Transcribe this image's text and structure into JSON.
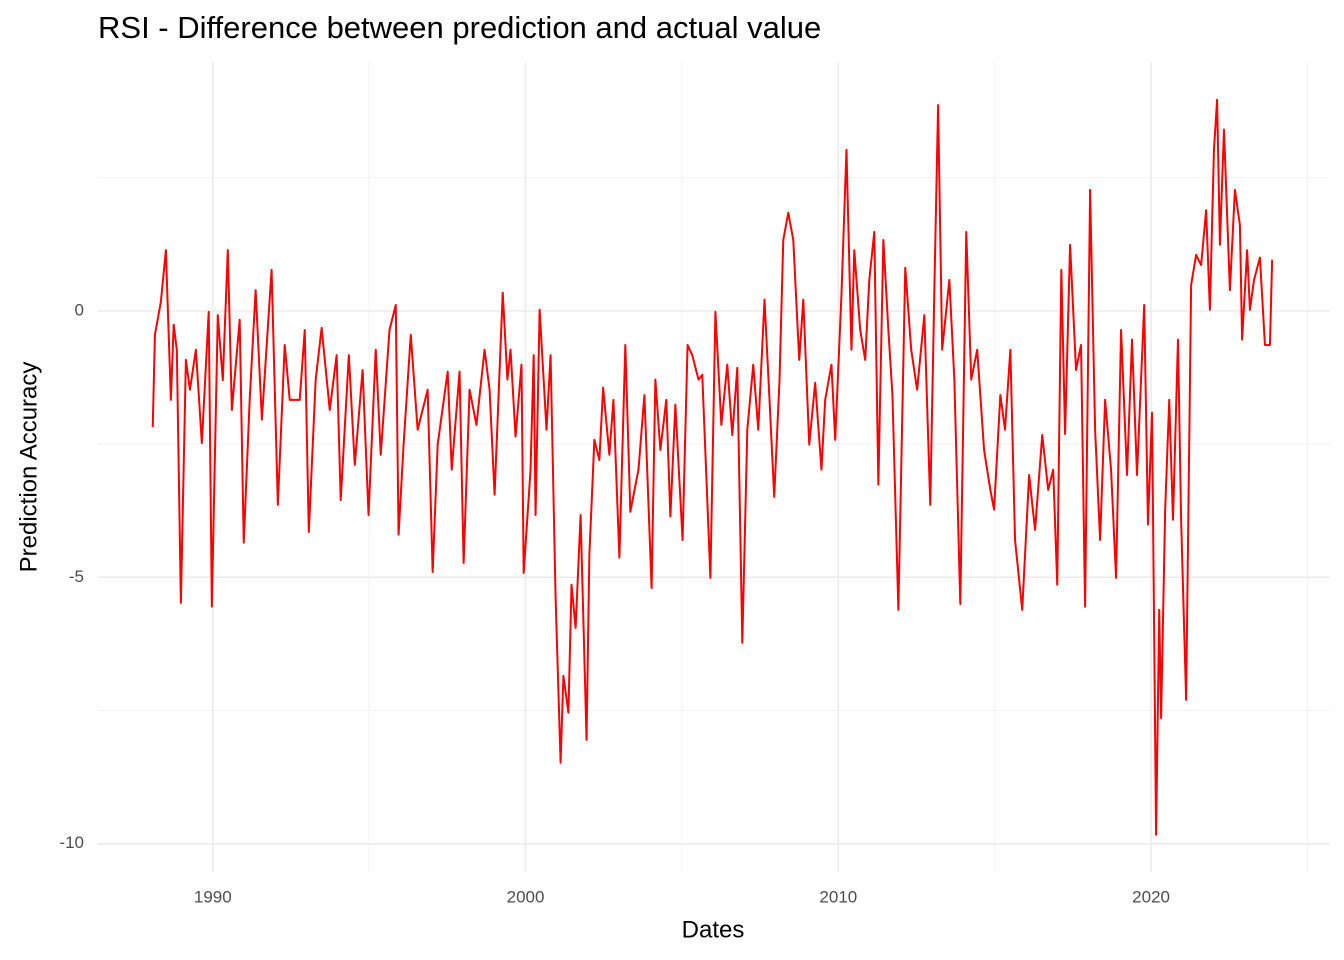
{
  "chart_data": {
    "type": "line",
    "title": "RSI -  Difference between prediction and actual value",
    "x_label": "Dates",
    "y_label": "Prediction Accuracy",
    "xlim": [
      1986.33,
      2025.72
    ],
    "ylim": [
      -10.53,
      4.67
    ],
    "xticks": [
      1990,
      2000,
      2010,
      2020
    ],
    "yticks": [
      -10,
      -5,
      0
    ],
    "grid": true,
    "series": [
      {
        "name": "RSI",
        "color": "#ff0000",
        "x": [
          1988.08,
          1988.15,
          1988.34,
          1988.5,
          1988.66,
          1988.75,
          1988.85,
          1988.98,
          1989.14,
          1989.27,
          1989.46,
          1989.65,
          1989.87,
          1989.97,
          1990.16,
          1990.32,
          1990.48,
          1990.61,
          1990.86,
          1990.99,
          1991.18,
          1991.37,
          1991.57,
          1991.88,
          1992.08,
          1992.3,
          1992.46,
          1992.78,
          1992.94,
          1993.07,
          1993.29,
          1993.48,
          1993.74,
          1993.96,
          1994.09,
          1994.35,
          1994.54,
          1994.79,
          1994.98,
          1995.21,
          1995.37,
          1995.65,
          1995.85,
          1995.94,
          1996.1,
          1996.33,
          1996.55,
          1996.87,
          1997.03,
          1997.19,
          1997.51,
          1997.64,
          1997.89,
          1998.02,
          1998.21,
          1998.43,
          1998.69,
          1998.85,
          1999.01,
          1999.27,
          1999.42,
          1999.52,
          1999.68,
          1999.87,
          1999.94,
          2000.16,
          2000.26,
          2000.32,
          2000.45,
          2000.67,
          2000.8,
          2000.96,
          2001.12,
          2001.21,
          2001.37,
          2001.47,
          2001.6,
          2001.76,
          2001.95,
          2002.04,
          2002.2,
          2002.36,
          2002.48,
          2002.68,
          2002.81,
          2003.0,
          2003.19,
          2003.35,
          2003.61,
          2003.8,
          2004.03,
          2004.15,
          2004.31,
          2004.5,
          2004.63,
          2004.79,
          2005.02,
          2005.18,
          2005.33,
          2005.53,
          2005.65,
          2005.91,
          2006.07,
          2006.26,
          2006.45,
          2006.61,
          2006.77,
          2006.93,
          2007.09,
          2007.28,
          2007.44,
          2007.64,
          2007.8,
          2007.95,
          2008.12,
          2008.24,
          2008.4,
          2008.56,
          2008.75,
          2008.88,
          2009.07,
          2009.26,
          2009.46,
          2009.58,
          2009.78,
          2009.9,
          2010.1,
          2010.26,
          2010.42,
          2010.51,
          2010.7,
          2010.86,
          2010.99,
          2011.15,
          2011.28,
          2011.44,
          2011.6,
          2011.73,
          2011.92,
          2012.14,
          2012.33,
          2012.52,
          2012.75,
          2012.94,
          2013.07,
          2013.19,
          2013.32,
          2013.55,
          2013.71,
          2013.9,
          2014.09,
          2014.25,
          2014.44,
          2014.66,
          2014.86,
          2014.98,
          2015.18,
          2015.33,
          2015.5,
          2015.65,
          2015.88,
          2016.1,
          2016.29,
          2016.52,
          2016.71,
          2016.87,
          2017.0,
          2017.13,
          2017.25,
          2017.41,
          2017.6,
          2017.76,
          2017.89,
          2018.05,
          2018.21,
          2018.37,
          2018.53,
          2018.72,
          2018.88,
          2019.04,
          2019.23,
          2019.39,
          2019.55,
          2019.78,
          2019.9,
          2020.03,
          2020.16,
          2020.26,
          2020.32,
          2020.45,
          2020.58,
          2020.7,
          2020.86,
          2020.96,
          2021.12,
          2021.28,
          2021.44,
          2021.6,
          2021.76,
          2021.88,
          2022.01,
          2022.11,
          2022.2,
          2022.33,
          2022.52,
          2022.68,
          2022.84,
          2022.91,
          2023.07,
          2023.16,
          2023.29,
          2023.48,
          2023.64,
          2023.8,
          2023.87
        ],
        "values": [
          -2.18,
          -0.45,
          0.17,
          1.14,
          -1.67,
          -0.26,
          -0.73,
          -5.48,
          -0.92,
          -1.48,
          -0.73,
          -2.48,
          -0.02,
          -5.55,
          -0.08,
          -1.3,
          1.14,
          -1.86,
          -0.17,
          -4.35,
          -1.67,
          0.39,
          -2.04,
          0.77,
          -3.64,
          -0.64,
          -1.67,
          -1.67,
          -0.36,
          -4.15,
          -1.29,
          -0.32,
          -1.86,
          -0.83,
          -3.55,
          -0.83,
          -2.89,
          -1.11,
          -3.83,
          -0.73,
          -2.7,
          -0.36,
          0.11,
          -4.2,
          -2.51,
          -0.45,
          -2.23,
          -1.48,
          -4.9,
          -2.51,
          -1.14,
          -2.98,
          -1.14,
          -4.73,
          -1.48,
          -2.14,
          -0.73,
          -1.48,
          -3.45,
          0.34,
          -1.29,
          -0.73,
          -2.36,
          -1.01,
          -4.92,
          -2.98,
          -0.83,
          -3.83,
          0.02,
          -2.23,
          -0.83,
          -5.37,
          -8.48,
          -6.85,
          -7.54,
          -5.14,
          -5.95,
          -3.83,
          -8.05,
          -4.58,
          -2.42,
          -2.8,
          -1.44,
          -2.7,
          -1.67,
          -4.63,
          -0.64,
          -3.77,
          -2.98,
          -1.58,
          -5.2,
          -1.29,
          -2.61,
          -1.67,
          -3.86,
          -1.76,
          -4.3,
          -0.64,
          -0.83,
          -1.29,
          -1.2,
          -5.01,
          -0.02,
          -2.14,
          -1.01,
          -2.33,
          -1.07,
          -6.23,
          -2.23,
          -1.01,
          -2.23,
          0.21,
          -1.67,
          -3.49,
          -1.29,
          1.33,
          1.84,
          1.33,
          -0.92,
          0.21,
          -2.51,
          -1.35,
          -2.98,
          -1.67,
          -1.01,
          -2.42,
          0.3,
          3.02,
          -0.73,
          1.14,
          -0.36,
          -0.92,
          0.58,
          1.48,
          -3.26,
          1.33,
          -0.36,
          -1.58,
          -5.61,
          0.81,
          -0.73,
          -1.48,
          -0.08,
          -3.64,
          0.39,
          3.86,
          -0.73,
          0.58,
          -1.29,
          -5.5,
          1.48,
          -1.29,
          -0.73,
          -2.61,
          -3.36,
          -3.73,
          -1.58,
          -2.23,
          -0.73,
          -4.3,
          -5.61,
          -3.08,
          -4.11,
          -2.33,
          -3.36,
          -2.98,
          -5.14,
          0.77,
          -2.31,
          1.24,
          -1.11,
          -0.64,
          -5.55,
          2.27,
          -2.23,
          -4.3,
          -1.67,
          -2.98,
          -5.01,
          -0.36,
          -3.08,
          -0.54,
          -3.08,
          0.11,
          -4.01,
          -1.91,
          -9.83,
          -5.61,
          -7.64,
          -3.73,
          -1.67,
          -3.92,
          -0.54,
          -3.92,
          -7.3,
          0.49,
          1.05,
          0.86,
          1.89,
          0.02,
          3.02,
          3.96,
          1.24,
          3.4,
          0.39,
          2.27,
          1.61,
          -0.54,
          1.14,
          0.02,
          0.58,
          1.0,
          -0.64,
          -0.64,
          0.96
        ]
      }
    ]
  }
}
